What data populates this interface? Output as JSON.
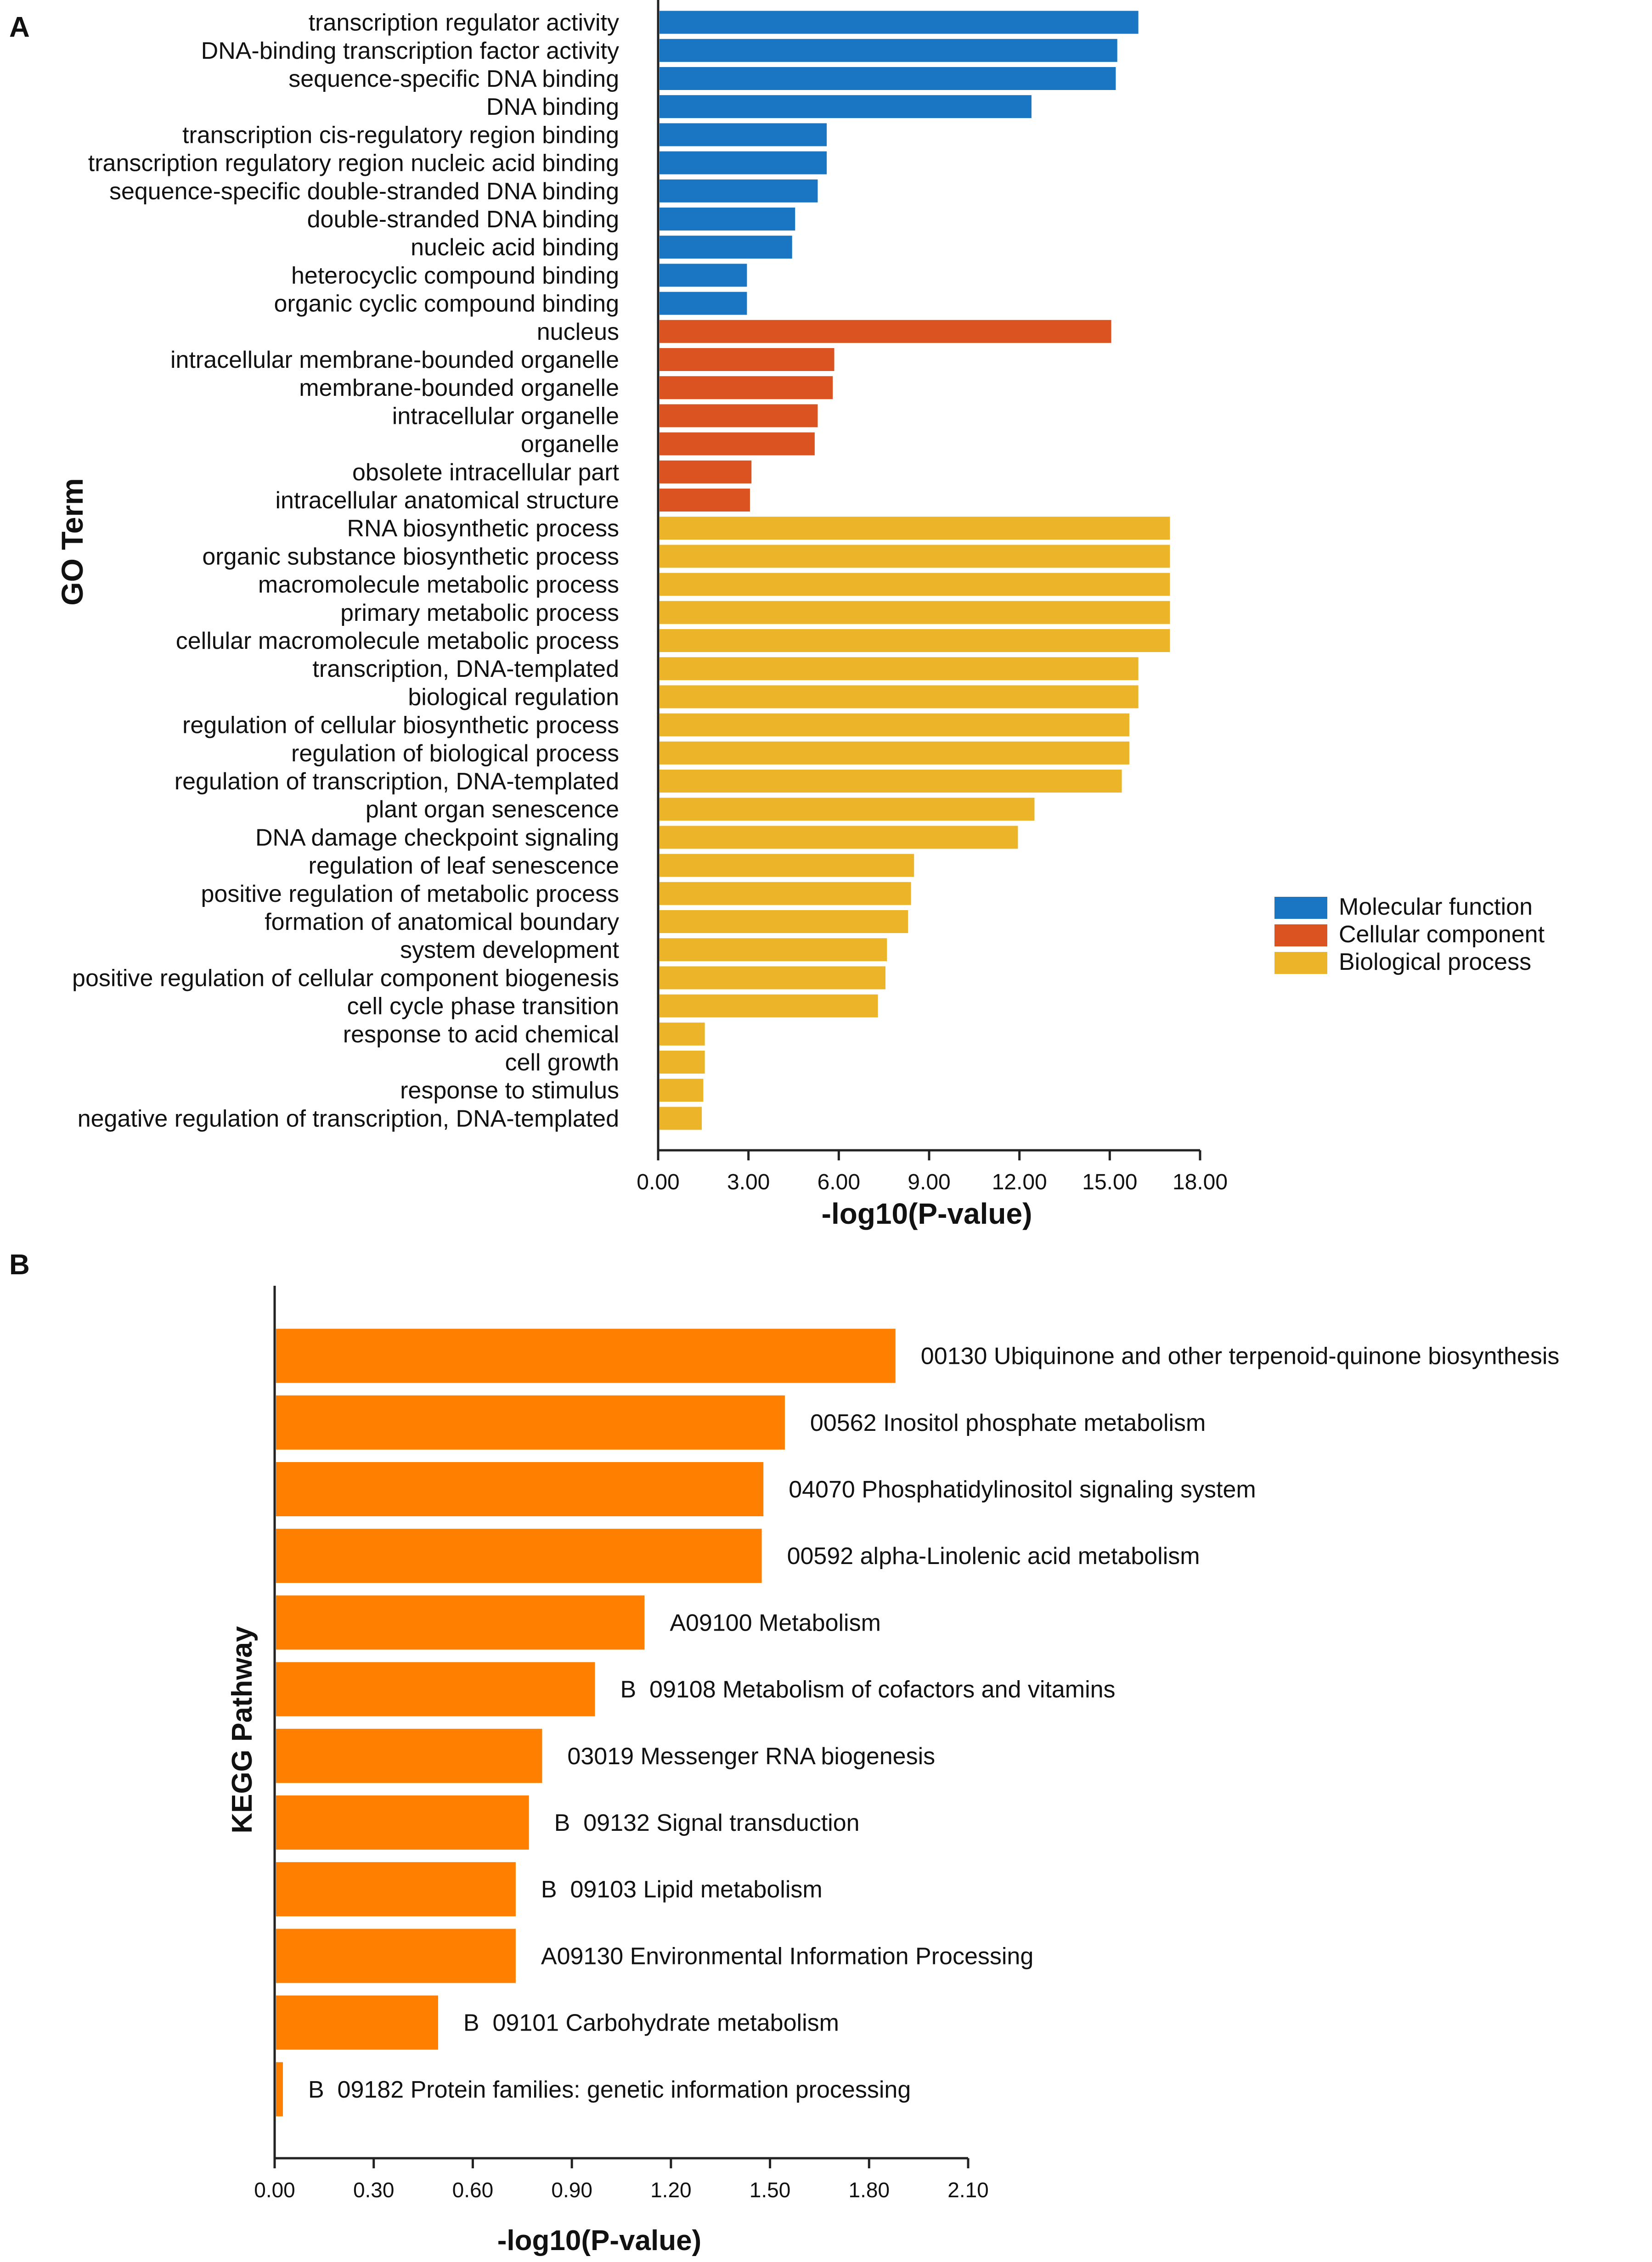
{
  "panels": {
    "a": {
      "letter": "A"
    },
    "b": {
      "letter": "B"
    }
  },
  "colors": {
    "molecular_function": "#1a75c2",
    "cellular_component": "#db5320",
    "biological_process": "#ecb428",
    "kegg": "#ff7f00",
    "axis": "#222222",
    "text": "#111111"
  },
  "chart_data": [
    {
      "type": "bar",
      "orientation": "horizontal",
      "title": "",
      "xlabel": "-log10(P-value)",
      "ylabel": "GO Term",
      "xlim": [
        0,
        18
      ],
      "xticks": [
        "0.00",
        "3.00",
        "6.00",
        "9.00",
        "12.00",
        "15.00",
        "18.00"
      ],
      "legend": {
        "placement": "right",
        "entries": [
          {
            "label": "Molecular function",
            "color_key": "molecular_function"
          },
          {
            "label": "Cellular component",
            "color_key": "cellular_component"
          },
          {
            "label": "Biological process",
            "color_key": "biological_process"
          }
        ]
      },
      "categories": [
        "transcription regulator activity",
        "DNA-binding transcription factor activity",
        "sequence-specific DNA binding",
        "DNA binding",
        "transcription cis-regulatory region binding",
        "transcription regulatory region nucleic acid binding",
        "sequence-specific double-stranded DNA binding",
        "double-stranded DNA binding",
        "nucleic acid binding",
        "heterocyclic compound binding",
        "organic cyclic compound binding",
        "nucleus",
        "intracellular membrane-bounded organelle",
        "membrane-bounded organelle",
        "intracellular organelle",
        "organelle",
        "obsolete intracellular part",
        "intracellular anatomical structure",
        "RNA biosynthetic process",
        "organic substance biosynthetic process",
        "macromolecule metabolic process",
        "primary metabolic process",
        "cellular macromolecule metabolic process",
        "transcription, DNA-templated",
        "biological regulation",
        "regulation of cellular biosynthetic process",
        "regulation of biological process",
        "regulation of transcription, DNA-templated",
        "plant organ senescence",
        "DNA damage checkpoint signaling",
        "regulation of leaf senescence",
        "positive regulation of metabolic process",
        "formation of anatomical boundary",
        "system development",
        "positive regulation of cellular component biogenesis",
        "cell cycle phase transition",
        "response to acid chemical",
        "cell growth",
        "response to stimulus",
        "negative regulation of transcription, DNA-templated"
      ],
      "values": [
        15.95,
        15.25,
        15.2,
        12.4,
        5.6,
        5.6,
        5.3,
        4.55,
        4.45,
        2.95,
        2.95,
        15.05,
        5.85,
        5.8,
        5.3,
        5.2,
        3.1,
        3.05,
        17.0,
        17.0,
        17.0,
        17.0,
        17.0,
        15.95,
        15.95,
        15.65,
        15.65,
        15.4,
        12.5,
        11.95,
        8.5,
        8.4,
        8.3,
        7.6,
        7.55,
        7.3,
        1.55,
        1.55,
        1.5,
        1.45
      ],
      "groups": [
        "molecular_function",
        "molecular_function",
        "molecular_function",
        "molecular_function",
        "molecular_function",
        "molecular_function",
        "molecular_function",
        "molecular_function",
        "molecular_function",
        "molecular_function",
        "molecular_function",
        "cellular_component",
        "cellular_component",
        "cellular_component",
        "cellular_component",
        "cellular_component",
        "cellular_component",
        "cellular_component",
        "biological_process",
        "biological_process",
        "biological_process",
        "biological_process",
        "biological_process",
        "biological_process",
        "biological_process",
        "biological_process",
        "biological_process",
        "biological_process",
        "biological_process",
        "biological_process",
        "biological_process",
        "biological_process",
        "biological_process",
        "biological_process",
        "biological_process",
        "biological_process",
        "biological_process",
        "biological_process",
        "biological_process",
        "biological_process"
      ]
    },
    {
      "type": "bar",
      "orientation": "horizontal",
      "title": "",
      "xlabel": "-log10(P-value)",
      "ylabel": "KEGG Pathway",
      "xlim": [
        0,
        2.1
      ],
      "xticks": [
        "0.00",
        "0.30",
        "0.60",
        "0.90",
        "1.20",
        "1.50",
        "1.80",
        "2.10"
      ],
      "categories": [
        "00130 Ubiquinone and other terpenoid-quinone biosynthesis",
        "00562 Inositol phosphate metabolism",
        "04070 Phosphatidylinositol signaling system",
        "00592 alpha-Linolenic acid metabolism",
        "A09100 Metabolism",
        "B  09108 Metabolism of cofactors and vitamins",
        "03019 Messenger RNA biogenesis",
        "B  09132 Signal transduction",
        "B  09103 Lipid metabolism",
        "A09130 Environmental Information Processing",
        "B  09101 Carbohydrate metabolism",
        "B  09182 Protein families: genetic information processing"
      ],
      "values": [
        1.88,
        1.545,
        1.48,
        1.475,
        1.12,
        0.97,
        0.81,
        0.77,
        0.73,
        0.73,
        0.495,
        0.025
      ]
    }
  ]
}
